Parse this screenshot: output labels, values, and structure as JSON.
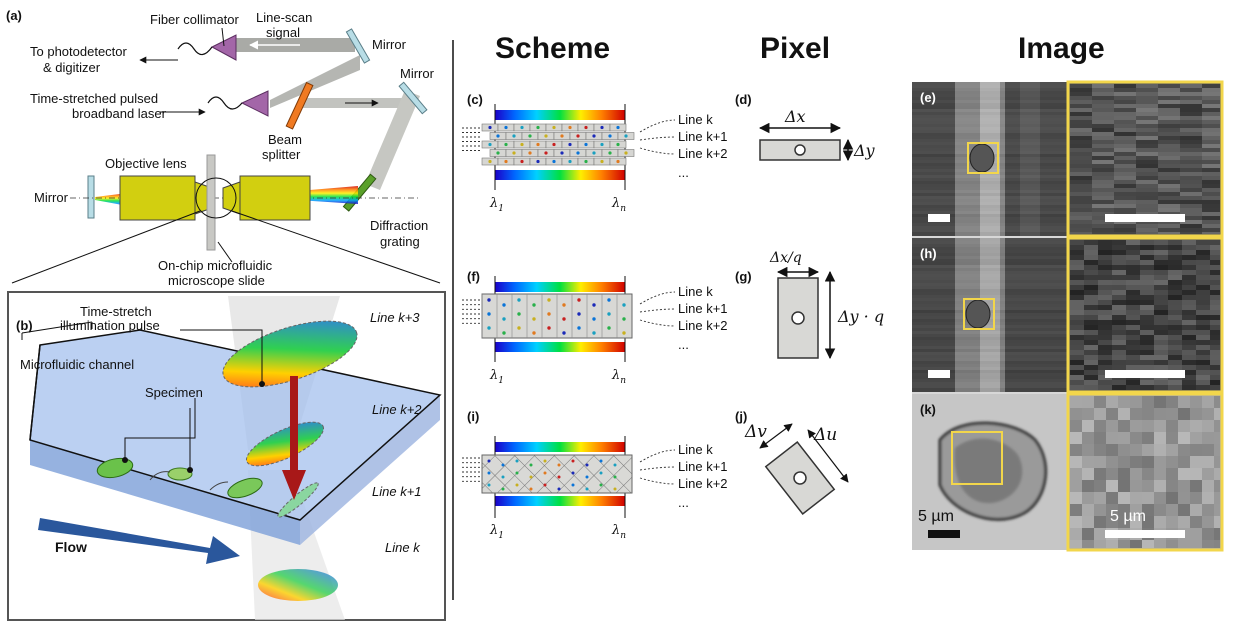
{
  "panels": {
    "a": "(a)",
    "b": "(b)",
    "c": "(c)",
    "d": "(d)",
    "e": "(e)",
    "f": "(f)",
    "g": "(g)",
    "h": "(h)",
    "i": "(i)",
    "j": "(j)",
    "k": "(k)"
  },
  "headers": {
    "scheme": "Scheme",
    "pixel": "Pixel",
    "image": "Image"
  },
  "setup": {
    "fiber_collimator": "Fiber collimator",
    "to_photodetector_1": "To photodetector",
    "to_photodetector_2": "& digitizer",
    "line_scan_1": "Line-scan",
    "line_scan_2": "signal",
    "mirror_1": "Mirror",
    "mirror_2": "Mirror",
    "mirror_3": "Mirror",
    "laser_1": "Time-stretched pulsed",
    "laser_2": "broadband laser",
    "beam_splitter_1": "Beam",
    "beam_splitter_2": "splitter",
    "objective_lens": "Objective lens",
    "diffraction_1": "Diffraction",
    "diffraction_2": "grating",
    "onchip_1": "On-chip microfluidic",
    "onchip_2": "microscope slide"
  },
  "inset": {
    "pulse_1": "Time-stretch",
    "pulse_2": "illumination pulse",
    "microfluidic_channel": "Microfluidic channel",
    "specimen": "Specimen",
    "flow": "Flow",
    "line_k3": "Line k+3",
    "line_k2": "Line k+2",
    "line_k1": "Line k+1",
    "line_k": "Line k"
  },
  "scheme_lines": [
    "Line k",
    "Line k+1",
    "Line k+2",
    "..."
  ],
  "wavelengths": {
    "first": "λ",
    "first_sub": "1",
    "last": "λ",
    "last_sub": "n"
  },
  "pixel": {
    "d_dx": "Δx",
    "d_dy": "Δy",
    "g_top": "Δx/q",
    "g_side": "Δy · q",
    "j_v": "Δv",
    "j_u": "Δu"
  },
  "scale_bars": {
    "k_left": "5 µm",
    "k_right": "5 µm"
  },
  "colors": {
    "highlight": "#f2d64b",
    "channel": "#9bb8ea",
    "flow_arrow": "#2a579c",
    "lens": "#c9c400"
  }
}
